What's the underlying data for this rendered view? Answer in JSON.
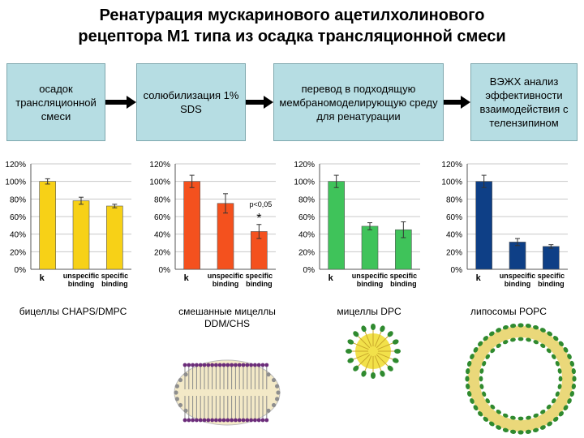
{
  "title": {
    "line1": "Ренатурация мускаринового ацетилхолинового",
    "line2": "рецептора М1 типа из осадка трансляционной смеси"
  },
  "steps": [
    {
      "label": "осадок трансляционной смеси"
    },
    {
      "label": "солюбилизация 1% SDS"
    },
    {
      "label": "перевод в подходящую мембраномоделирующую среду для ренатурации"
    },
    {
      "label": "ВЭЖХ анализ эффективности взаимодействия с телензипином"
    }
  ],
  "colors": {
    "chart1": "#f7d117",
    "chart2": "#f4511e",
    "chart3": "#3fc35a",
    "chart4": "#0e3f86",
    "box": "#b6dde3"
  },
  "chart_data": [
    {
      "type": "bar",
      "categories": [
        "k",
        "unspecific binding",
        "specific binding"
      ],
      "values": [
        100,
        78,
        72
      ],
      "errors": [
        3,
        4,
        2
      ],
      "ylim": [
        0,
        120
      ],
      "yticks": [
        "0%",
        "20%",
        "40%",
        "60%",
        "80%",
        "100%",
        "120%"
      ],
      "annotation": "",
      "caption": "бицеллы CHAPS/DMPC"
    },
    {
      "type": "bar",
      "categories": [
        "k",
        "unspecific binding",
        "specific binding"
      ],
      "values": [
        100,
        75,
        43
      ],
      "errors": [
        7,
        11,
        8
      ],
      "ylim": [
        0,
        120
      ],
      "yticks": [
        "0%",
        "20%",
        "40%",
        "60%",
        "80%",
        "100%",
        "120%"
      ],
      "annotation": "p<0,05",
      "star": "*",
      "caption": "смешанные мицеллы DDM/CHS"
    },
    {
      "type": "bar",
      "categories": [
        "k",
        "unspecific binding",
        "specific binding"
      ],
      "values": [
        100,
        49,
        45
      ],
      "errors": [
        7,
        4,
        9
      ],
      "ylim": [
        0,
        120
      ],
      "yticks": [
        "0%",
        "20%",
        "40%",
        "60%",
        "80%",
        "100%",
        "120%"
      ],
      "annotation": "",
      "caption": "мицеллы DPC"
    },
    {
      "type": "bar",
      "categories": [
        "k",
        "unspecific binding",
        "specific binding"
      ],
      "values": [
        100,
        31,
        26
      ],
      "errors": [
        7,
        4,
        2
      ],
      "ylim": [
        0,
        120
      ],
      "yticks": [
        "0%",
        "20%",
        "40%",
        "60%",
        "80%",
        "100%",
        "120%"
      ],
      "annotation": "",
      "caption": "липосомы POPC"
    }
  ]
}
